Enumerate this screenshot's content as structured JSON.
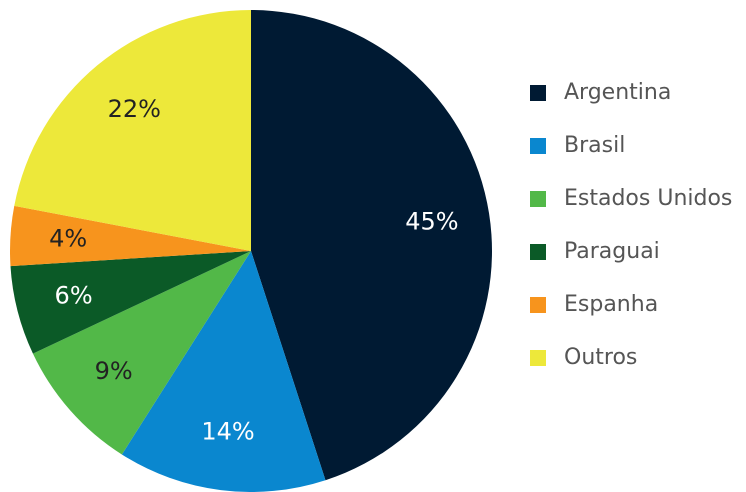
{
  "chart_data": {
    "type": "pie",
    "categories": [
      "Argentina",
      "Brasil",
      "Estados Unidos",
      "Paraguai",
      "Espanha",
      "Outros"
    ],
    "values": [
      45,
      14,
      9,
      6,
      4,
      22
    ],
    "value_labels": [
      "45%",
      "14%",
      "9%",
      "6%",
      "4%",
      "22%"
    ],
    "colors": [
      "#001a33",
      "#0a87cf",
      "#52b848",
      "#0b5a27",
      "#f7941d",
      "#ede83a"
    ],
    "legend": "right"
  }
}
